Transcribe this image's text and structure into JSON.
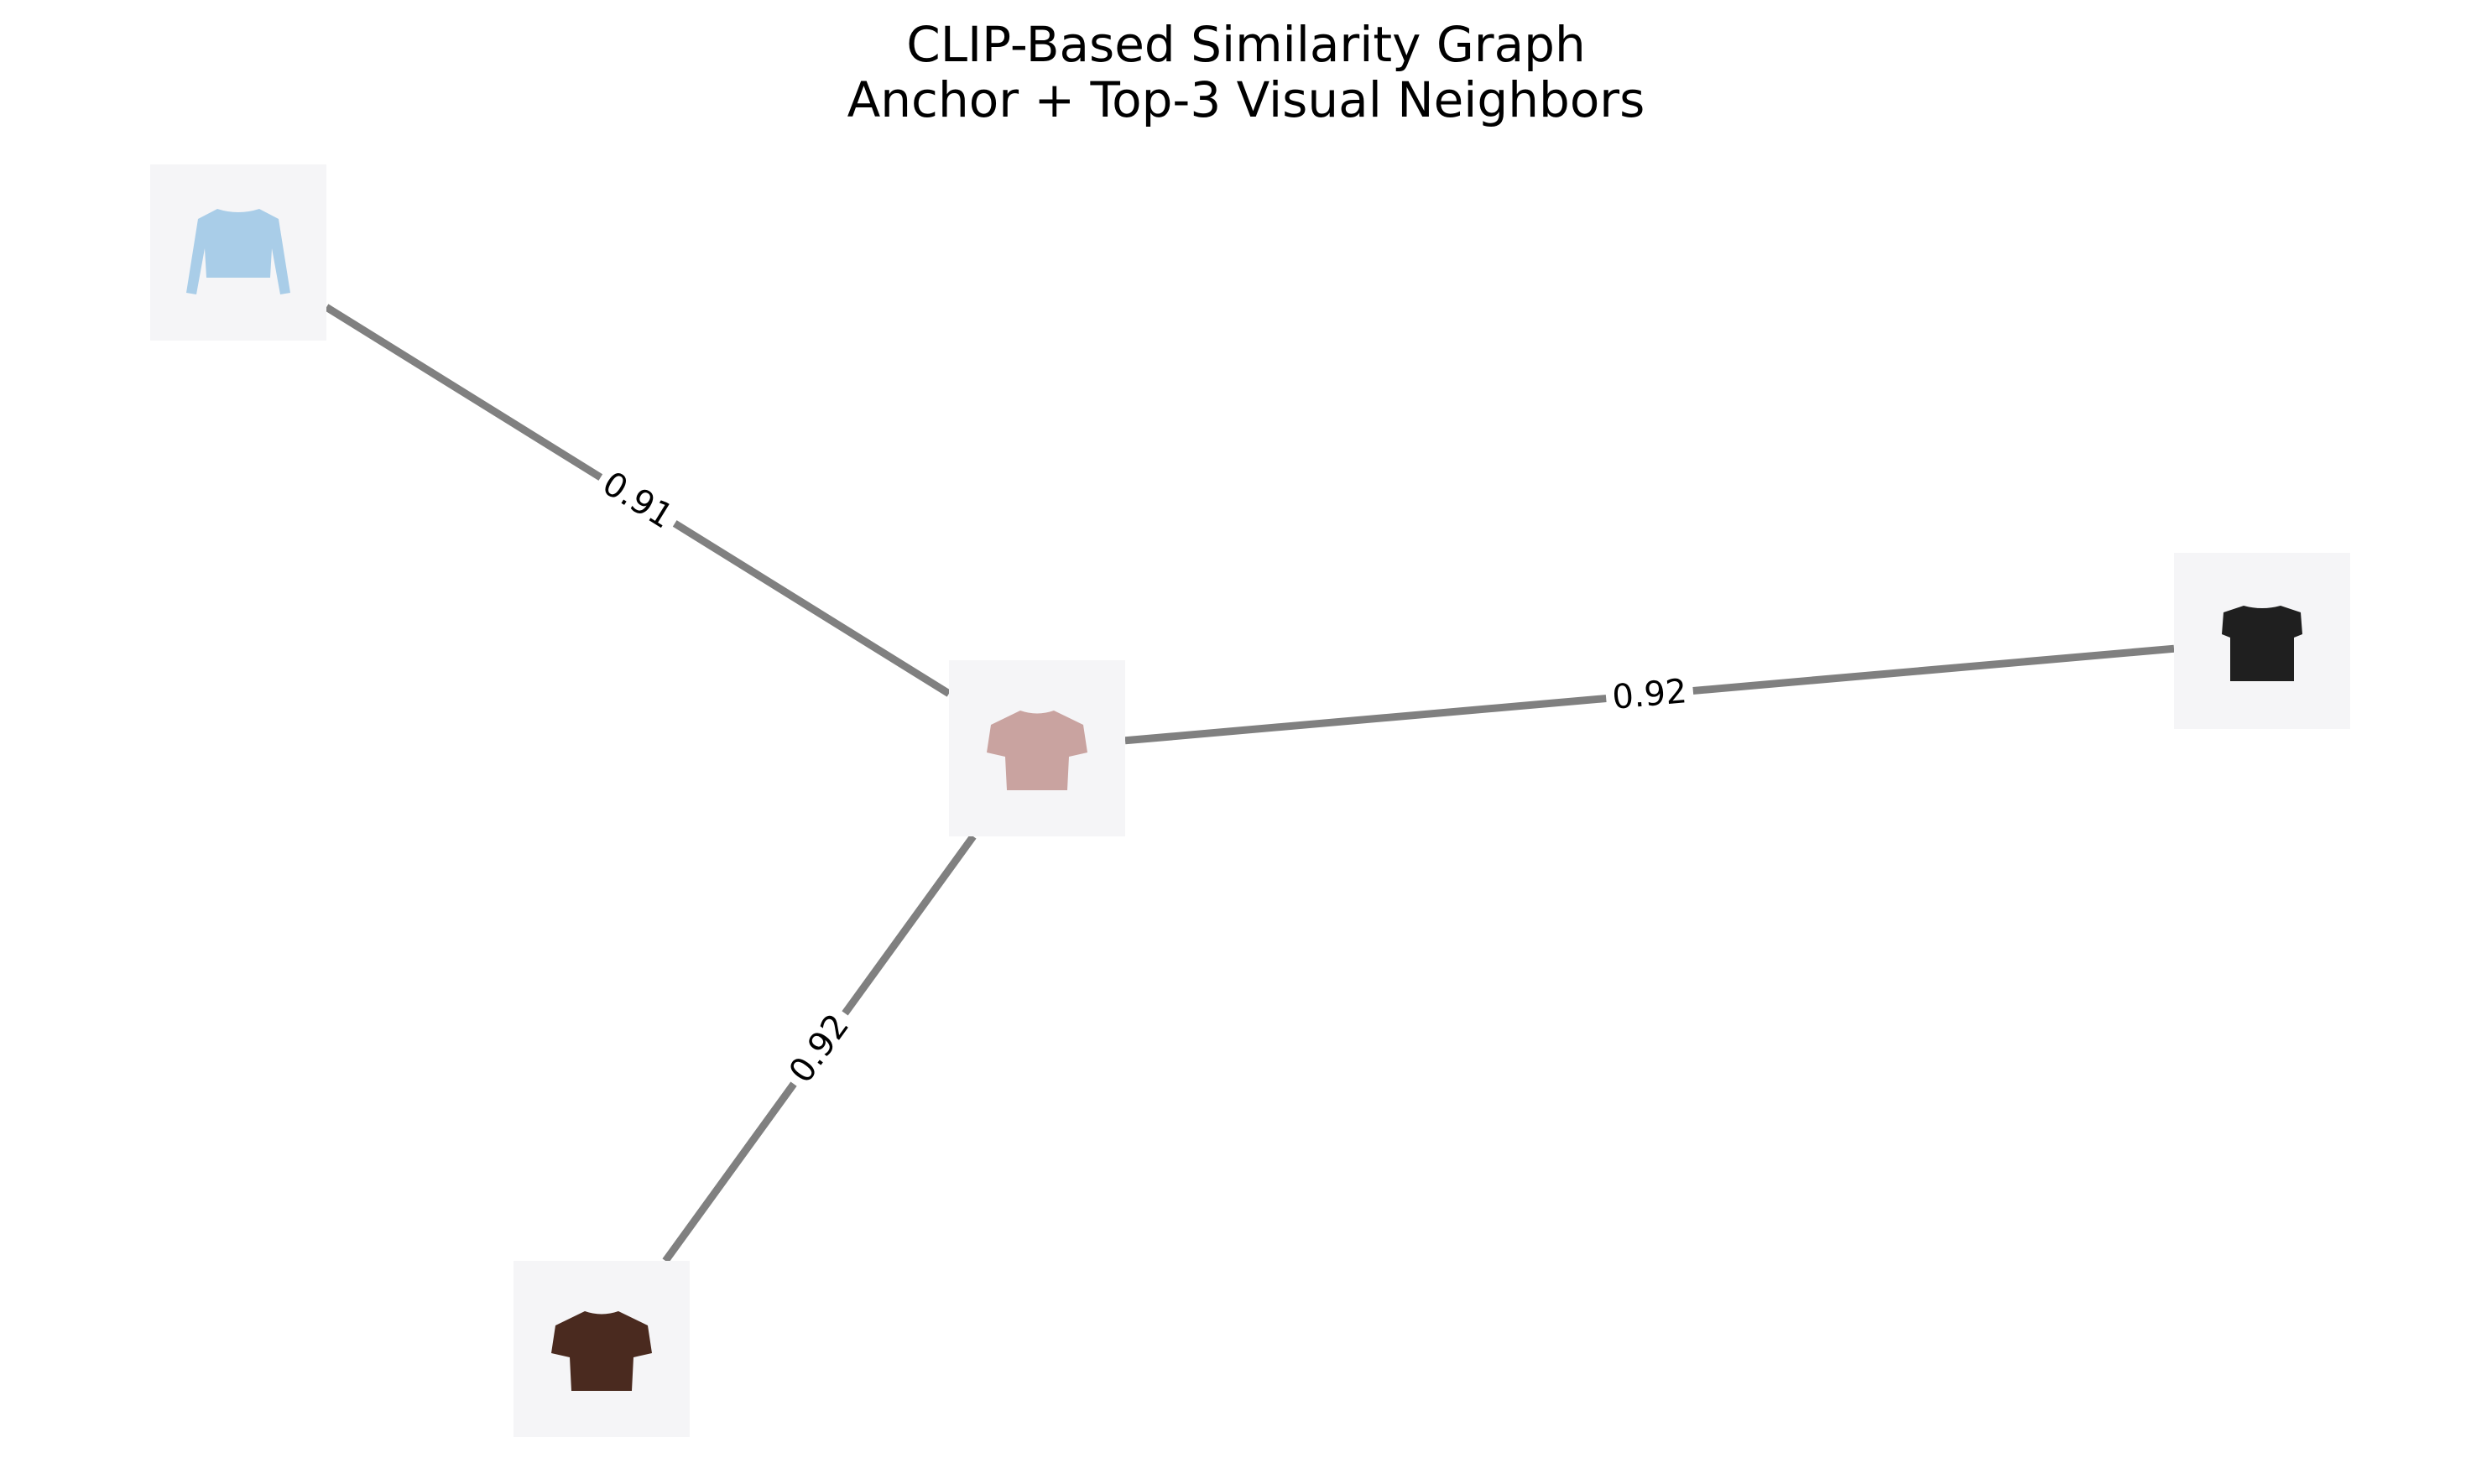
{
  "figure": {
    "title_line1": "CLIP-Based Similarity Graph",
    "title_line2": "Anchor + Top-3 Visual Neighbors"
  },
  "graph": {
    "edge_color": "#808080",
    "node_background": "#f5f5f7",
    "nodes": [
      {
        "id": "anchor",
        "role": "anchor",
        "icon": "pink-tshirt-icon",
        "garment_color": "#c9a3a0"
      },
      {
        "id": "neighbor-blue",
        "role": "neighbor",
        "icon": "light-blue-cropped-cardigan-icon",
        "garment_color": "#a9cde8"
      },
      {
        "id": "neighbor-black",
        "role": "neighbor",
        "icon": "black-cap-sleeve-top-icon",
        "garment_color": "#1f1f1f"
      },
      {
        "id": "neighbor-brown",
        "role": "neighbor",
        "icon": "brown-knit-tee-icon",
        "garment_color": "#4a2a1f"
      }
    ],
    "edges": [
      {
        "source": "anchor",
        "target": "neighbor-blue",
        "similarity": "0.91"
      },
      {
        "source": "anchor",
        "target": "neighbor-black",
        "similarity": "0.92"
      },
      {
        "source": "anchor",
        "target": "neighbor-brown",
        "similarity": "0.92"
      }
    ]
  }
}
